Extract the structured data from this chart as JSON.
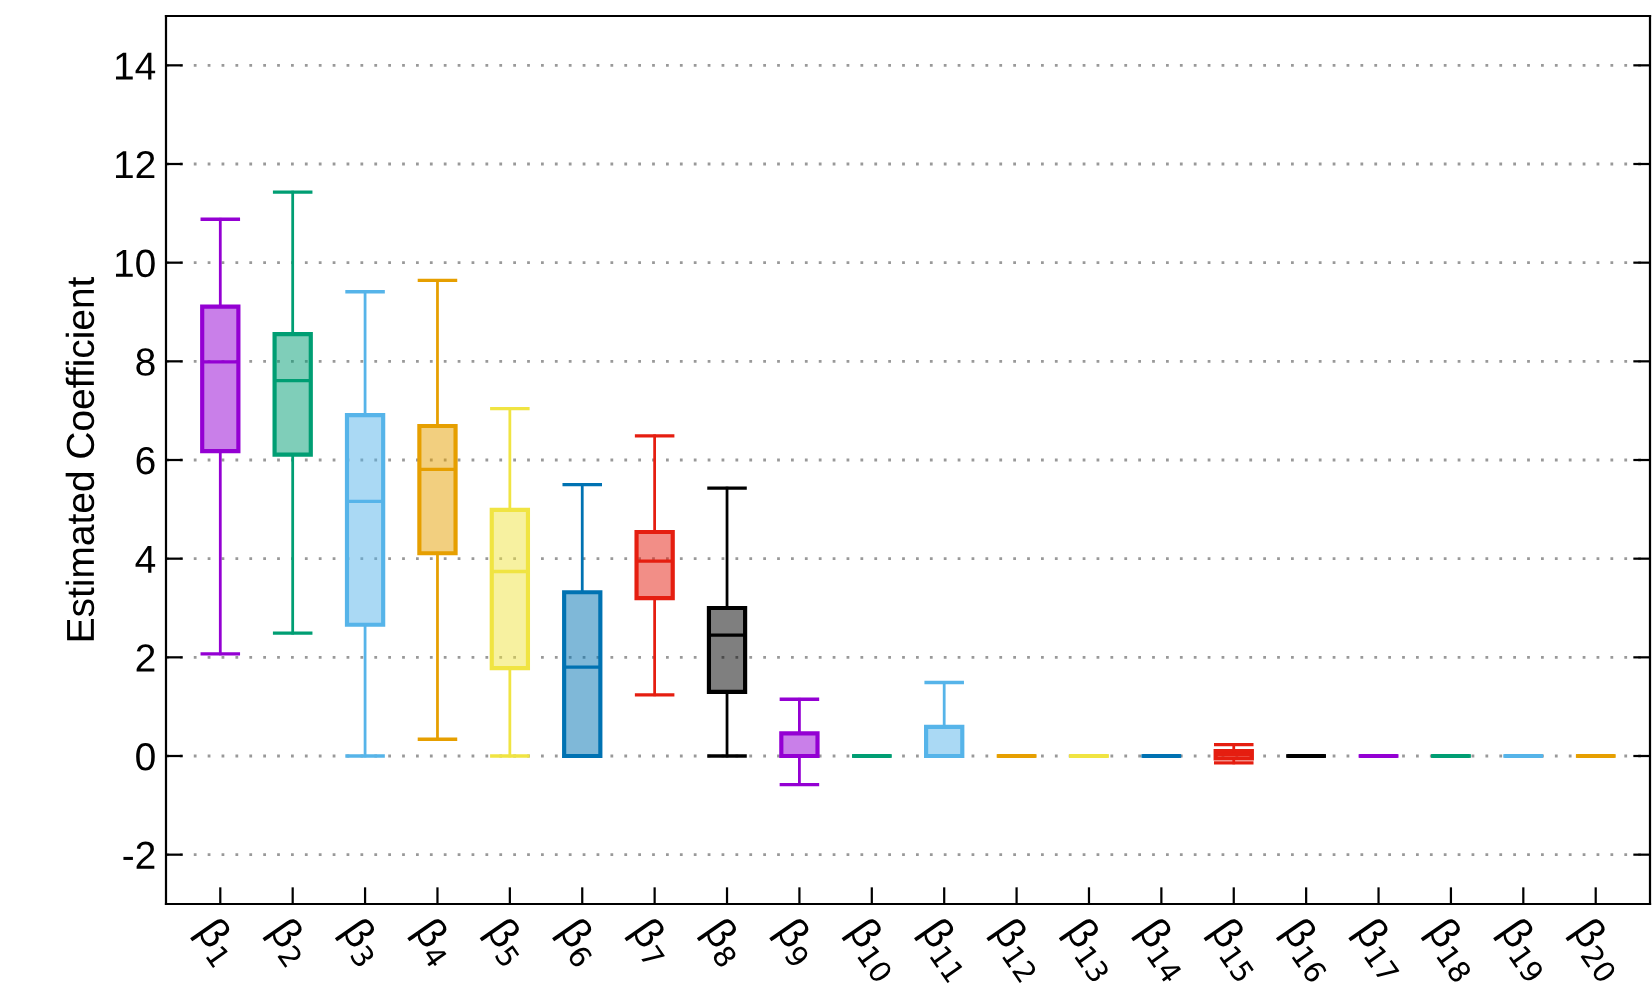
{
  "chart_data": {
    "type": "box",
    "ylabel": "Estimated Coefficient",
    "categories": [
      "β$_{1}$",
      "β$_{2}$",
      "β$_{3}$",
      "β$_{4}$",
      "β$_{5}$",
      "β$_{6}$",
      "β$_{7}$",
      "β$_{8}$",
      "β$_{9}$",
      "β$_{10}$",
      "β$_{11}$",
      "β$_{12}$",
      "β$_{13}$",
      "β$_{14}$",
      "β$_{15}$",
      "β$_{16}$",
      "β$_{17}$",
      "β$_{18}$",
      "β$_{19}$",
      "β$_{20}$"
    ],
    "colors": [
      "#9400d3",
      "#009e73",
      "#56b4e9",
      "#e69f00",
      "#f0e442",
      "#0072b2",
      "#e51e10",
      "#000000",
      "#9400d3",
      "#009e73",
      "#56b4e9",
      "#e69f00",
      "#f0e442",
      "#0072b2",
      "#e51e10",
      "#000000",
      "#9400d3",
      "#009e73",
      "#56b4e9",
      "#e69f00"
    ],
    "boxes": [
      {
        "low": 2.07,
        "q1": 6.18,
        "median": 7.99,
        "q3": 9.11,
        "high": 10.88
      },
      {
        "low": 2.49,
        "q1": 6.11,
        "median": 7.61,
        "q3": 8.55,
        "high": 11.43
      },
      {
        "low": 0,
        "q1": 2.66,
        "median": 5.16,
        "q3": 6.91,
        "high": 9.41
      },
      {
        "low": 0.34,
        "q1": 4.11,
        "median": 5.81,
        "q3": 6.69,
        "high": 9.64
      },
      {
        "low": 0,
        "q1": 1.78,
        "median": 3.74,
        "q3": 4.99,
        "high": 7.04
      },
      {
        "low": 0,
        "q1": 0,
        "median": 1.8,
        "q3": 3.32,
        "high": 5.5
      },
      {
        "low": 1.24,
        "q1": 3.2,
        "median": 3.95,
        "q3": 4.54,
        "high": 6.49
      },
      {
        "low": 0,
        "q1": 1.3,
        "median": 2.45,
        "q3": 3.0,
        "high": 5.43
      },
      {
        "low": -0.58,
        "q1": 0,
        "median": 0,
        "q3": 0.46,
        "high": 1.15
      },
      {
        "low": 0,
        "q1": 0,
        "median": 0,
        "q3": 0,
        "high": 0
      },
      {
        "low": 0,
        "q1": 0,
        "median": 0,
        "q3": 0.59,
        "high": 1.49
      },
      {
        "low": 0,
        "q1": 0,
        "median": 0,
        "q3": 0,
        "high": 0
      },
      {
        "low": 0,
        "q1": 0,
        "median": 0,
        "q3": 0,
        "high": 0
      },
      {
        "low": 0,
        "q1": 0,
        "median": 0,
        "q3": 0,
        "high": 0
      },
      {
        "low": -0.14,
        "q1": -0.05,
        "median": 0.03,
        "q3": 0.1,
        "high": 0.23
      },
      {
        "low": 0,
        "q1": 0,
        "median": 0,
        "q3": 0,
        "high": 0
      },
      {
        "low": 0,
        "q1": 0,
        "median": 0,
        "q3": 0,
        "high": 0
      },
      {
        "low": 0,
        "q1": 0,
        "median": 0,
        "q3": 0,
        "high": 0
      },
      {
        "low": 0,
        "q1": 0,
        "median": 0,
        "q3": 0,
        "high": 0
      },
      {
        "low": 0,
        "q1": 0,
        "median": 0,
        "q3": 0,
        "high": 0
      }
    ],
    "ylim": [
      -3,
      15
    ],
    "yticks": [
      -2,
      0,
      2,
      4,
      6,
      8,
      10,
      12,
      14
    ],
    "grid": "y"
  }
}
